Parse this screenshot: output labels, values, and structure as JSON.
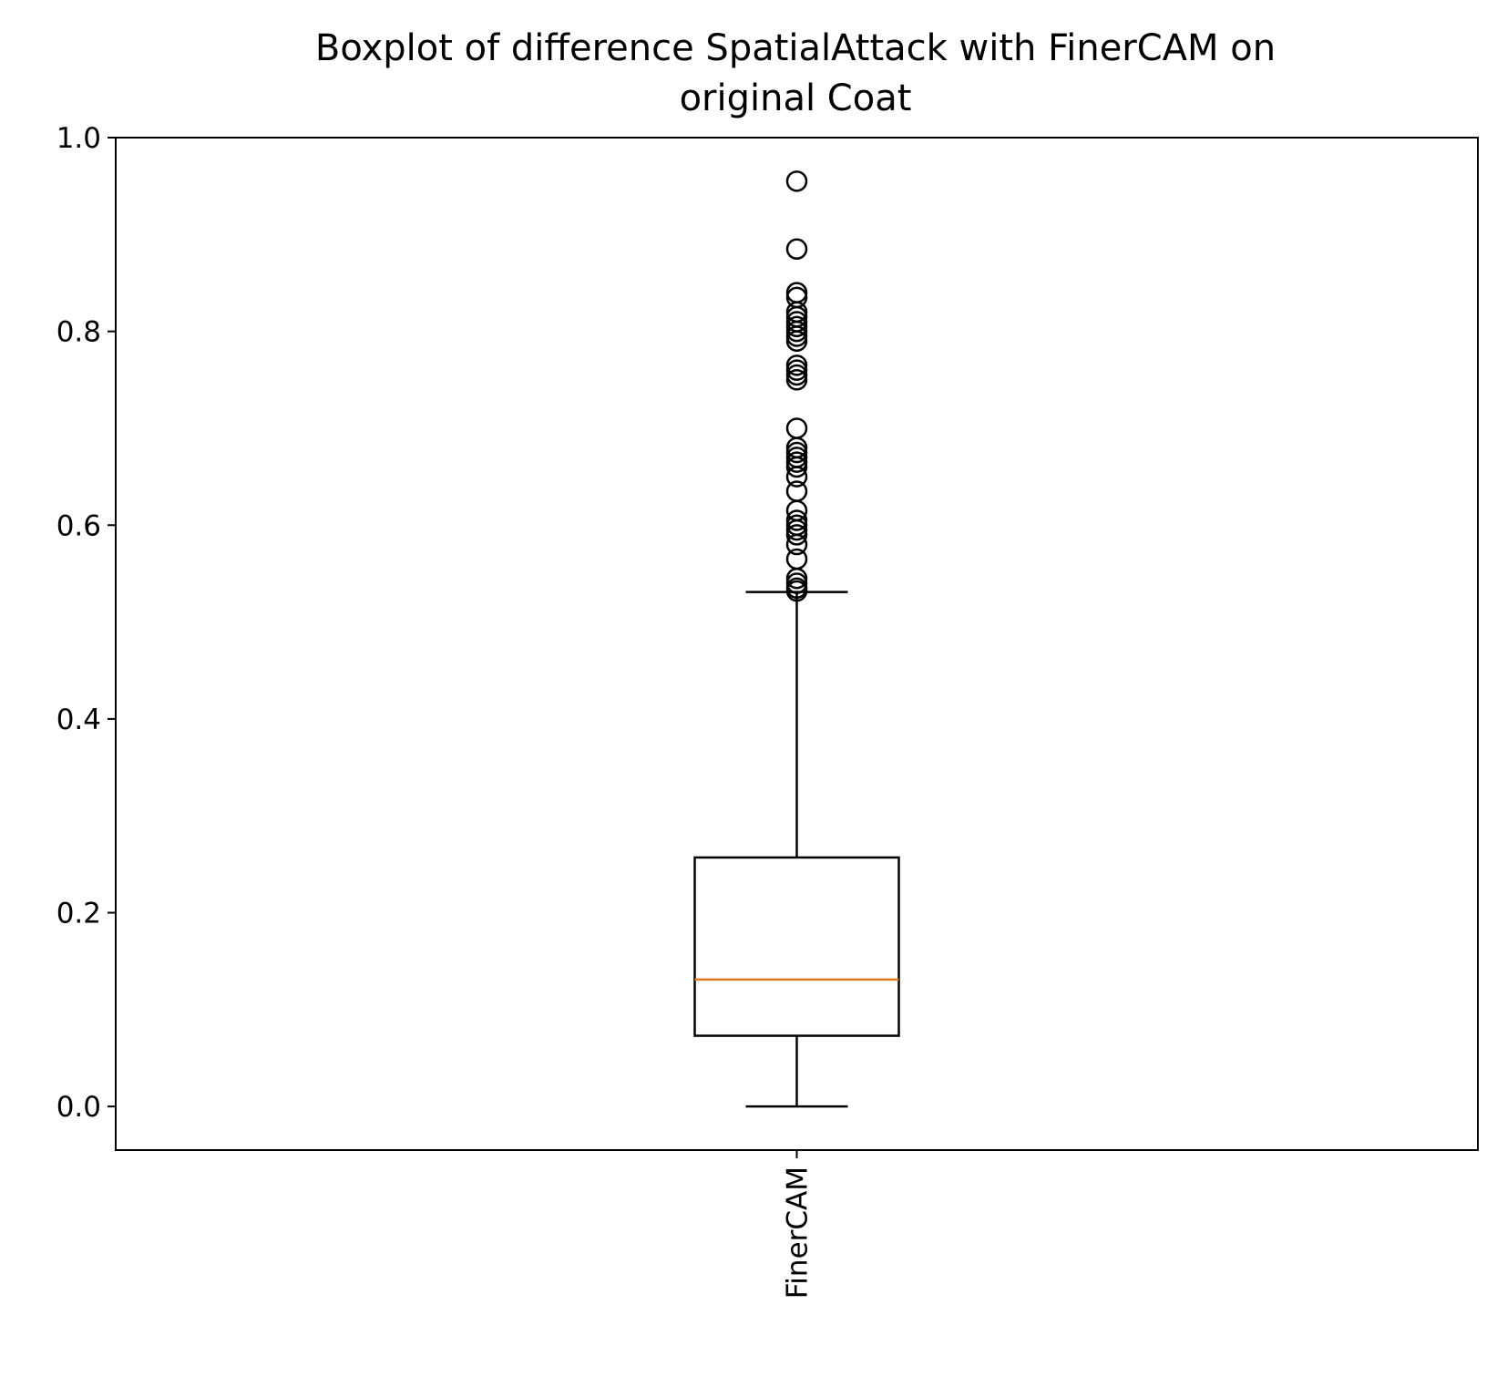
{
  "chart_data": {
    "type": "boxplot",
    "title_lines": [
      "Boxplot of difference SpatialAttack with FinerCAM on",
      "original Coat"
    ],
    "categories": [
      "FinerCAM"
    ],
    "ylim": [
      -0.045,
      1.0
    ],
    "yticks": [
      0.0,
      0.2,
      0.4,
      0.6,
      0.8,
      1.0
    ],
    "ytick_labels": [
      "0.0",
      "0.2",
      "0.4",
      "0.6",
      "0.8",
      "1.0"
    ],
    "grid": false,
    "boxes": [
      {
        "name": "FinerCAM",
        "whisker_low": 0.0,
        "q1": 0.073,
        "median": 0.131,
        "q3": 0.257,
        "whisker_high": 0.531,
        "fliers": [
          0.955,
          0.885,
          0.84,
          0.835,
          0.82,
          0.815,
          0.81,
          0.805,
          0.8,
          0.795,
          0.79,
          0.765,
          0.76,
          0.755,
          0.75,
          0.7,
          0.68,
          0.675,
          0.67,
          0.665,
          0.66,
          0.65,
          0.635,
          0.615,
          0.605,
          0.6,
          0.595,
          0.59,
          0.58,
          0.565,
          0.545,
          0.54,
          0.535,
          0.532
        ]
      }
    ],
    "colors": {
      "box": "#000000",
      "median": "#e07b20",
      "flier": "#000000"
    }
  }
}
